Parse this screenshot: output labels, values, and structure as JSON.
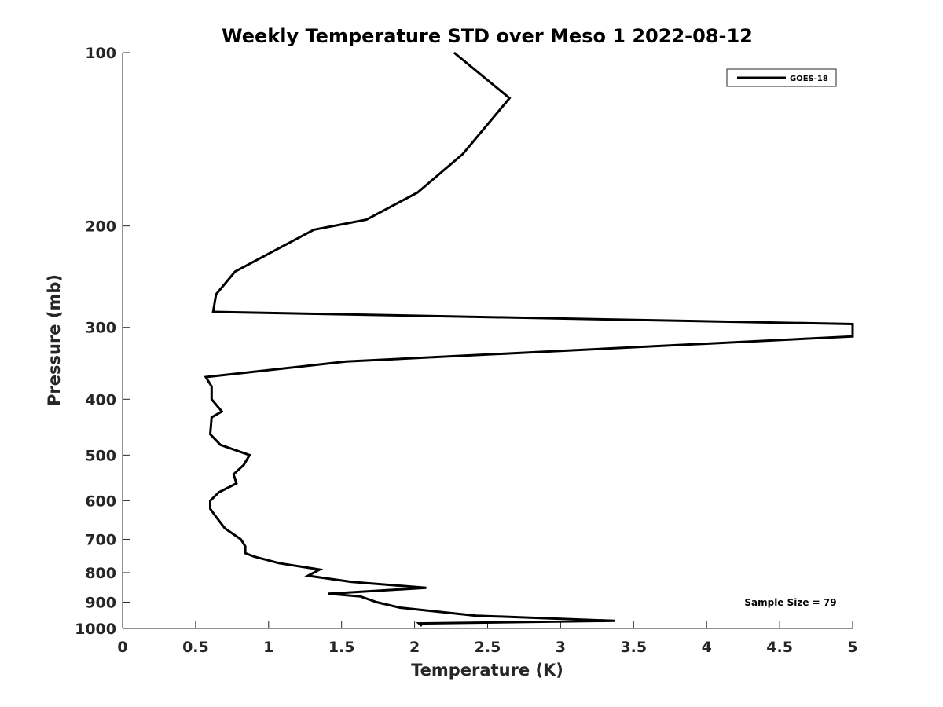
{
  "chart_data": {
    "type": "line",
    "title": "Weekly Temperature STD over Meso 1 2022-08-12",
    "xlabel": "Temperature (K)",
    "ylabel": "Pressure (mb)",
    "xlim": [
      0,
      5
    ],
    "ylim": [
      1000,
      100
    ],
    "yscale": "log",
    "xticks": [
      0,
      0.5,
      1,
      1.5,
      2,
      2.5,
      3,
      3.5,
      4,
      4.5,
      5
    ],
    "xtick_labels": [
      "0",
      "0.5",
      "1",
      "1.5",
      "2",
      "2.5",
      "3",
      "3.5",
      "4",
      "4.5",
      "5"
    ],
    "yticks": [
      100,
      200,
      300,
      400,
      500,
      600,
      700,
      800,
      900,
      1000
    ],
    "ytick_labels": [
      "100",
      "200",
      "300",
      "400",
      "500",
      "600",
      "700",
      "800",
      "900",
      "1000"
    ],
    "grid": false,
    "legend": {
      "placement": "top-right",
      "entries": [
        "GOES-18"
      ]
    },
    "annotation": "Sample Size = 79",
    "series": [
      {
        "name": "GOES-18",
        "color": "#000000",
        "temperature": [
          2.27,
          2.65,
          2.33,
          2.02,
          1.67,
          1.31,
          0.77,
          0.64,
          0.62,
          5.0,
          5.0,
          1.53,
          0.57,
          0.61,
          0.61,
          0.61,
          0.68,
          0.61,
          0.6,
          0.67,
          0.87,
          0.83,
          0.76,
          0.78,
          0.66,
          0.6,
          0.6,
          0.64,
          0.7,
          0.81,
          0.84,
          0.84,
          0.9,
          1.07,
          1.35,
          1.27,
          1.57,
          2.08,
          1.41,
          1.63,
          1.74,
          1.9,
          2.42,
          3.37,
          2.03,
          2.05
        ],
        "pressure": [
          100,
          120,
          150,
          175,
          195,
          203,
          240,
          263,
          282,
          296,
          311,
          344,
          366,
          380,
          390,
          400,
          420,
          430,
          460,
          480,
          500,
          520,
          540,
          560,
          580,
          600,
          620,
          640,
          670,
          700,
          720,
          740,
          750,
          770,
          790,
          810,
          830,
          850,
          870,
          880,
          900,
          920,
          950,
          970,
          980,
          990
        ]
      }
    ]
  }
}
